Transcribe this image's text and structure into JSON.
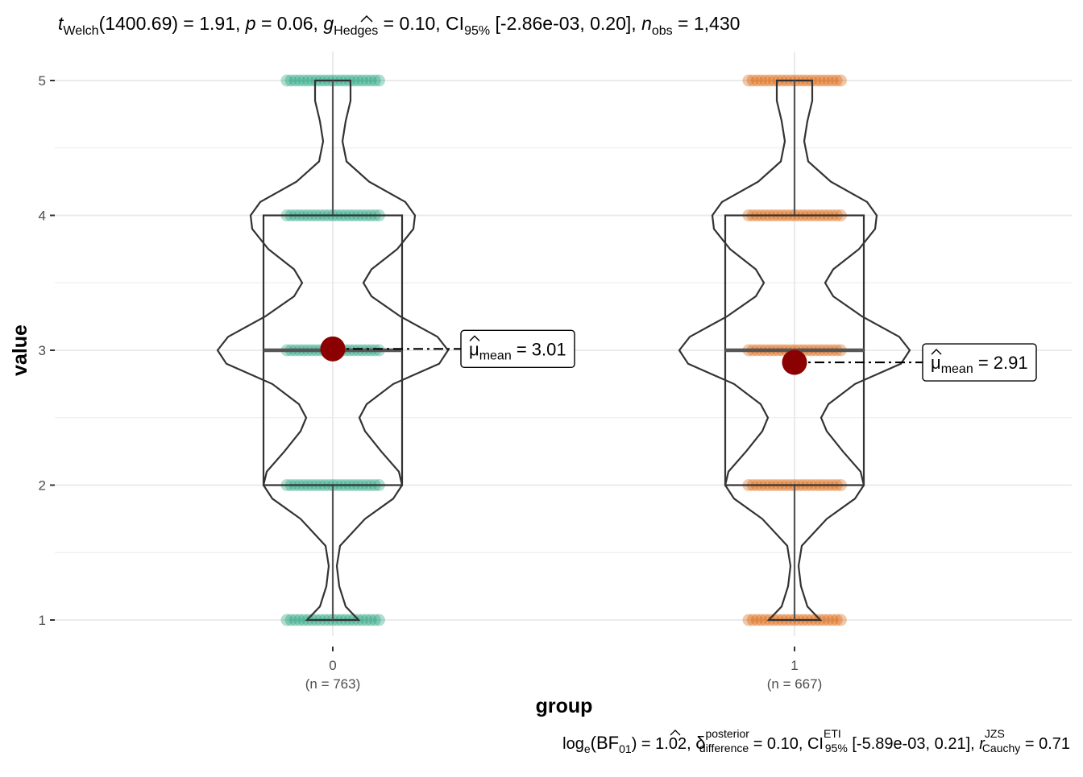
{
  "chart_data": {
    "type": "violin-box-jitter",
    "title": {
      "t_symbol": "t",
      "t_sub": "Welch",
      "df": "(1400.69) = 1.91,",
      "p_symbol": "p",
      "p_text": " = 0.06,",
      "g_symbol": "g",
      "g_sub": "Hedges",
      "g_text": " = 0.10, CI",
      "ci_sub": "95%",
      "ci_text": " [-2.86e-03, 0.20],",
      "n_symbol": "n",
      "n_sub": "obs",
      "n_text": " = 1,430"
    },
    "caption": {
      "log_text": "log",
      "log_sub": "e",
      "bf_open": "(BF",
      "bf_sub": "01",
      "bf_text": ") = 1.02,",
      "delta_symbol": "δ",
      "delta_sup": "posterior",
      "delta_sub": "difference",
      "delta_text": " = 0.10, CI",
      "ci_sup": "ETI",
      "ci_sub": "95%",
      "ci_text": " [-5.89e-03, 0.21],",
      "r_symbol": "r",
      "r_sup": "JZS",
      "r_sub": "Cauchy",
      "r_text": " = 0.71"
    },
    "xlabel": "group",
    "ylabel": "value",
    "ylim": [
      0.82,
      5.18
    ],
    "yticks": [
      1,
      2,
      3,
      4,
      5
    ],
    "grid": true,
    "mean_label": {
      "symbol": "μ",
      "sub": "mean",
      "eq": " = "
    },
    "groups": [
      {
        "name": "0",
        "n_label": "(n = 763)",
        "color": "#1b9e77",
        "levels": [
          1,
          2,
          3,
          4,
          5
        ],
        "box": {
          "min": 1,
          "q1": 2,
          "median": 3,
          "q3": 4,
          "max": 5
        },
        "mean": 3.01,
        "mean_text": "3.01"
      },
      {
        "name": "1",
        "n_label": "(n = 667)",
        "color": "#d95f02",
        "levels": [
          1,
          2,
          3,
          4,
          5
        ],
        "box": {
          "min": 1,
          "q1": 2,
          "median": 3,
          "q3": 4,
          "max": 5
        },
        "mean": 2.91,
        "mean_text": "2.91"
      }
    ],
    "colors": {
      "mean_point": "#8b0000",
      "grid": "#ebebeb",
      "outline": "#333333"
    }
  }
}
